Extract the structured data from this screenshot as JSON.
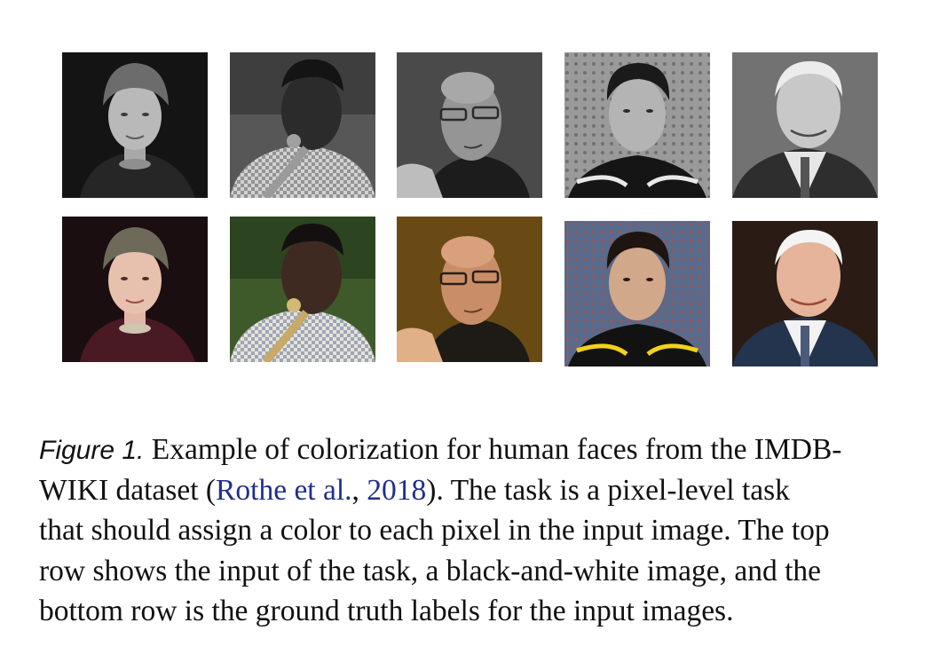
{
  "figure": {
    "rows": [
      {
        "name": "input-row",
        "photos": [
          {
            "subject": "elderly woman in knit cap",
            "mode": "grayscale"
          },
          {
            "subject": "man playing saxophone",
            "mode": "grayscale"
          },
          {
            "subject": "bald man with glasses",
            "mode": "grayscale"
          },
          {
            "subject": "young man in sports jersey",
            "mode": "grayscale"
          },
          {
            "subject": "elderly man in suit",
            "mode": "grayscale"
          }
        ]
      },
      {
        "name": "ground-truth-row",
        "photos": [
          {
            "subject": "elderly woman in knit cap",
            "mode": "color"
          },
          {
            "subject": "man playing saxophone",
            "mode": "color"
          },
          {
            "subject": "bald man with glasses",
            "mode": "color"
          },
          {
            "subject": "young man in sports jersey",
            "mode": "color"
          },
          {
            "subject": "elderly man in suit",
            "mode": "color"
          }
        ]
      }
    ]
  },
  "caption": {
    "label": "Figure 1.",
    "line1": " Example of colorization for human faces from the IMDB-",
    "line2_pre": "WIKI dataset (",
    "cite_author": "Rothe et al.",
    "cite_sep": ", ",
    "cite_year": "2018",
    "line2_post": ").  The task is a pixel-level task",
    "line3": "that should assign a color to each pixel in the input image. The top",
    "line4": "row shows the input of the task, a black-and-white image, and the",
    "line5": "bottom row is the ground truth labels for the input images."
  }
}
